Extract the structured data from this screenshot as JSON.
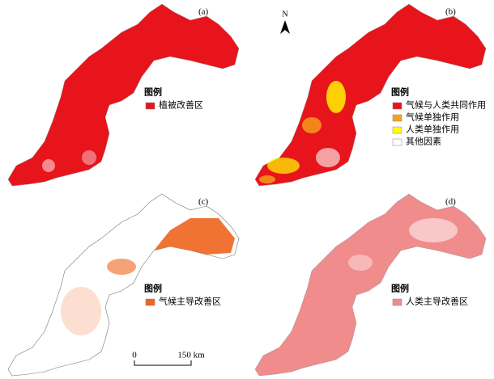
{
  "panels": [
    {
      "label": "(a)",
      "legend_title": "图例",
      "legend_items": [
        {
          "name": "植被改善区",
          "color": "#e8141c"
        }
      ]
    },
    {
      "label": "(b)",
      "legend_title": "图例",
      "legend_items": [
        {
          "name": "气候与人类共同作用",
          "color": "#e8141c"
        },
        {
          "name": "气候单独作用",
          "color": "#f5a21b"
        },
        {
          "name": "人类单独作用",
          "color": "#ffff00"
        },
        {
          "name": "其他因素",
          "color": "#ffffff"
        }
      ]
    },
    {
      "label": "(c)",
      "legend_title": "图例",
      "legend_items": [
        {
          "name": "气候主导改善区",
          "color": "#f0641e"
        }
      ]
    },
    {
      "label": "(d)",
      "legend_title": "图例",
      "legend_items": [
        {
          "name": "人类主导改善区",
          "color": "#f08c8c"
        }
      ]
    }
  ],
  "north": "N",
  "scale_bar": {
    "start": "0",
    "end": "150 km"
  }
}
